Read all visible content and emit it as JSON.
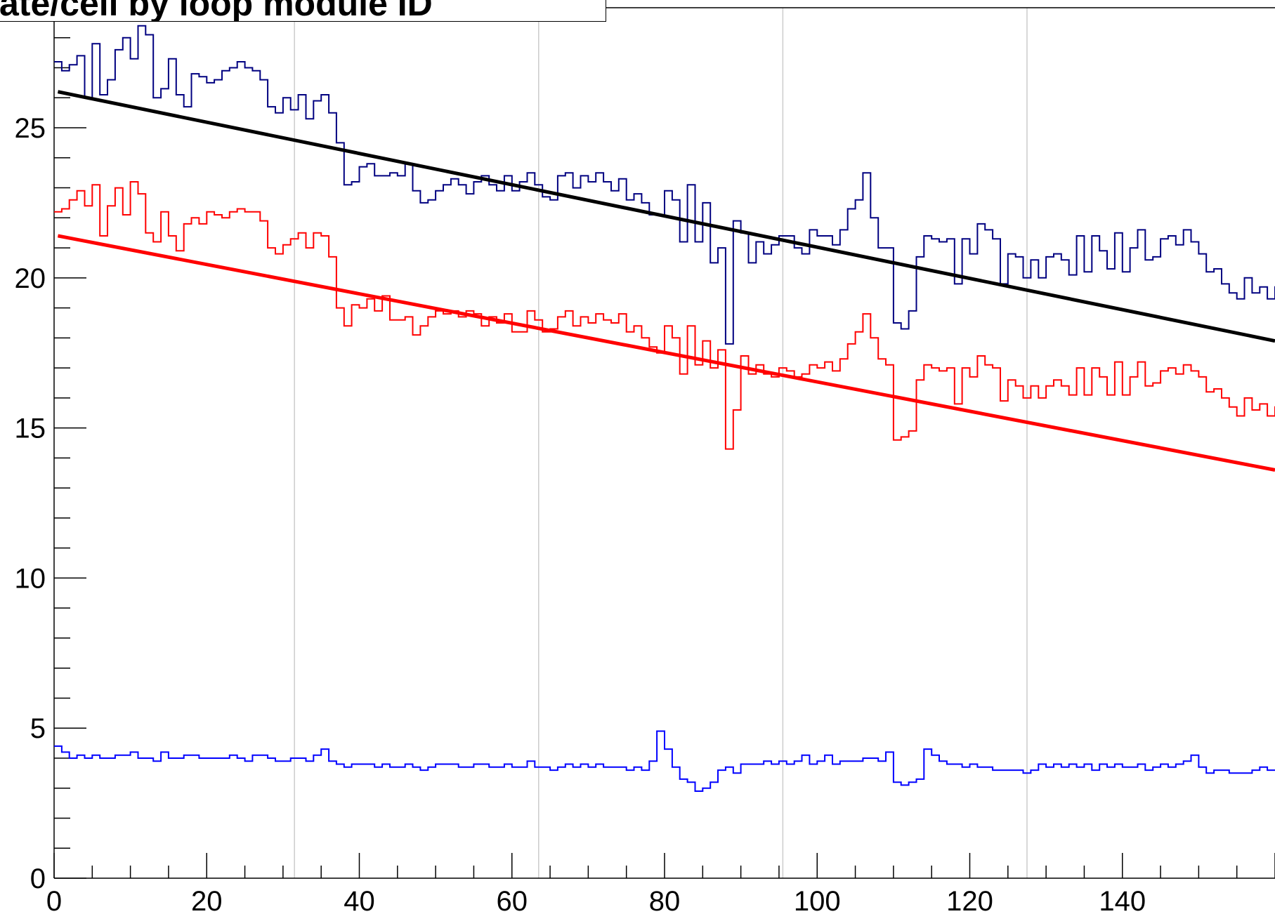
{
  "chart_data": {
    "type": "line",
    "title": "ate/cell by loop module ID",
    "xlabel": "",
    "ylabel": "",
    "xlim": [
      0,
      160
    ],
    "ylim": [
      0,
      29
    ],
    "x_ticks": [
      0,
      20,
      40,
      60,
      80,
      100,
      120,
      140
    ],
    "y_ticks": [
      0,
      5,
      10,
      15,
      20,
      25
    ],
    "x_tick_labels": [
      "0",
      "20",
      "40",
      "60",
      "80",
      "100",
      "120",
      "140"
    ],
    "y_tick_labels": [
      "0",
      "5",
      "10",
      "15",
      "20",
      "25"
    ],
    "vertical_grid_x": [
      31.5,
      63.5,
      95.5,
      127.5
    ],
    "grid": false,
    "series": [
      {
        "kind": "step",
        "color": "#000080",
        "values": [
          27.2,
          26.9,
          27.1,
          27.4,
          26.0,
          27.8,
          26.1,
          26.6,
          27.6,
          28.0,
          27.3,
          28.4,
          28.1,
          26.0,
          26.3,
          27.3,
          26.1,
          25.7,
          26.8,
          26.7,
          26.5,
          26.6,
          26.9,
          27.0,
          27.2,
          27.0,
          26.9,
          26.6,
          25.7,
          25.5,
          26.0,
          25.6,
          26.1,
          25.3,
          25.9,
          26.1,
          25.5,
          24.5,
          23.1,
          23.2,
          23.7,
          23.8,
          23.4,
          23.4,
          23.5,
          23.4,
          23.8,
          22.9,
          22.5,
          22.6,
          22.9,
          23.1,
          23.3,
          23.1,
          22.8,
          23.2,
          23.4,
          23.1,
          22.9,
          23.4,
          22.9,
          23.2,
          23.5,
          23.1,
          22.7,
          22.6,
          23.4,
          23.5,
          23.0,
          23.4,
          23.2,
          23.5,
          23.2,
          22.9,
          23.3,
          22.6,
          22.8,
          22.5,
          22.1,
          22.1,
          22.9,
          22.6,
          21.2,
          23.1,
          21.2,
          22.5,
          20.5,
          21.0,
          17.8,
          21.9,
          21.5,
          20.5,
          21.2,
          20.8,
          21.1,
          21.4,
          21.4,
          21.0,
          20.8,
          21.6,
          21.4,
          21.4,
          21.1,
          21.6,
          22.3,
          22.6,
          23.5,
          22.0,
          21.0,
          21.0,
          18.5,
          18.3,
          18.9,
          20.7,
          21.4,
          21.3,
          21.2,
          21.3,
          19.8,
          21.3,
          20.8,
          21.8,
          21.6,
          21.3,
          19.8,
          20.8,
          20.7,
          20.0,
          20.6,
          20.0,
          20.7,
          20.8,
          20.6,
          20.1,
          21.4,
          20.2,
          21.4,
          20.9,
          20.3,
          21.5,
          20.2,
          21.0,
          21.6,
          20.6,
          20.7,
          21.3,
          21.4,
          21.1,
          21.6,
          21.2,
          20.8,
          20.2,
          20.3,
          19.8,
          19.5,
          19.3,
          20.0,
          19.5,
          19.7,
          19.3,
          19.7,
          20.4,
          19.9,
          19.0,
          19.7,
          20.2,
          19.9,
          19.4,
          19.8,
          19.5,
          19.2,
          18.9,
          19.3,
          19.5,
          19.1,
          19.5,
          19.3,
          19.5,
          19.6
        ]
      },
      {
        "kind": "step",
        "color": "#ff0000",
        "values": [
          22.2,
          22.3,
          22.6,
          22.9,
          22.4,
          23.1,
          21.4,
          22.4,
          23.0,
          22.1,
          23.2,
          22.8,
          21.5,
          21.2,
          22.2,
          21.4,
          20.9,
          21.8,
          22.0,
          21.8,
          22.2,
          22.1,
          22.0,
          22.2,
          22.3,
          22.2,
          22.2,
          21.9,
          21.0,
          20.8,
          21.1,
          21.3,
          21.5,
          21.0,
          21.5,
          21.4,
          20.7,
          19.0,
          18.4,
          19.1,
          19.0,
          19.3,
          18.9,
          19.4,
          18.6,
          18.6,
          18.7,
          18.1,
          18.4,
          18.7,
          18.9,
          18.8,
          18.9,
          18.7,
          18.9,
          18.8,
          18.4,
          18.7,
          18.5,
          18.8,
          18.2,
          18.2,
          18.9,
          18.6,
          18.2,
          18.3,
          18.7,
          18.9,
          18.4,
          18.7,
          18.5,
          18.8,
          18.6,
          18.5,
          18.8,
          18.2,
          18.4,
          18.0,
          17.7,
          17.5,
          18.4,
          18.0,
          16.8,
          18.4,
          17.1,
          17.9,
          17.0,
          17.6,
          14.3,
          15.6,
          17.4,
          16.8,
          17.1,
          16.8,
          16.7,
          17.0,
          16.9,
          16.7,
          16.8,
          17.1,
          17.0,
          17.2,
          16.9,
          17.3,
          17.8,
          18.2,
          18.8,
          18.0,
          17.3,
          17.1,
          14.6,
          14.7,
          14.9,
          16.6,
          17.1,
          17.0,
          16.9,
          17.0,
          15.8,
          17.0,
          16.7,
          17.4,
          17.1,
          17.0,
          15.9,
          16.6,
          16.4,
          16.0,
          16.4,
          16.0,
          16.4,
          16.6,
          16.4,
          16.1,
          17.0,
          16.1,
          17.0,
          16.7,
          16.1,
          17.2,
          16.1,
          16.7,
          17.2,
          16.4,
          16.5,
          16.9,
          17.0,
          16.8,
          17.1,
          16.9,
          16.7,
          16.2,
          16.3,
          16.0,
          15.7,
          15.4,
          16.0,
          15.6,
          15.8,
          15.4,
          15.7,
          16.3,
          15.9,
          15.2,
          15.7,
          16.1,
          15.9,
          15.6,
          15.8,
          15.6,
          15.3,
          15.0,
          15.4,
          15.6,
          15.2,
          15.6,
          15.4,
          15.6,
          15.8
        ]
      },
      {
        "kind": "step",
        "color": "#0000ff",
        "values": [
          4.4,
          4.2,
          4.0,
          4.1,
          4.0,
          4.1,
          4.0,
          4.0,
          4.1,
          4.1,
          4.2,
          4.0,
          4.0,
          3.9,
          4.2,
          4.0,
          4.0,
          4.1,
          4.1,
          4.0,
          4.0,
          4.0,
          4.0,
          4.1,
          4.0,
          3.9,
          4.1,
          4.1,
          4.0,
          3.9,
          3.9,
          4.0,
          4.0,
          3.9,
          4.1,
          4.3,
          3.9,
          3.8,
          3.7,
          3.8,
          3.8,
          3.8,
          3.7,
          3.8,
          3.7,
          3.7,
          3.8,
          3.7,
          3.6,
          3.7,
          3.8,
          3.8,
          3.8,
          3.7,
          3.7,
          3.8,
          3.8,
          3.7,
          3.7,
          3.8,
          3.7,
          3.7,
          3.9,
          3.7,
          3.7,
          3.6,
          3.7,
          3.8,
          3.7,
          3.8,
          3.7,
          3.8,
          3.7,
          3.7,
          3.7,
          3.6,
          3.7,
          3.6,
          3.9,
          4.9,
          4.3,
          3.7,
          3.3,
          3.2,
          2.9,
          3.0,
          3.2,
          3.6,
          3.7,
          3.5,
          3.8,
          3.8,
          3.8,
          3.9,
          3.8,
          3.9,
          3.8,
          3.9,
          4.1,
          3.8,
          3.9,
          4.1,
          3.8,
          3.9,
          3.9,
          3.9,
          4.0,
          4.0,
          3.9,
          4.2,
          3.2,
          3.1,
          3.2,
          3.3,
          4.3,
          4.1,
          3.9,
          3.8,
          3.8,
          3.7,
          3.8,
          3.7,
          3.7,
          3.6,
          3.6,
          3.6,
          3.6,
          3.5,
          3.6,
          3.8,
          3.7,
          3.8,
          3.7,
          3.8,
          3.7,
          3.8,
          3.6,
          3.8,
          3.7,
          3.8,
          3.7,
          3.7,
          3.8,
          3.6,
          3.7,
          3.8,
          3.7,
          3.8,
          3.9,
          4.1,
          3.7,
          3.5,
          3.6,
          3.6,
          3.5,
          3.5,
          3.5,
          3.6,
          3.7,
          3.6,
          3.6,
          3.5,
          3.6,
          3.5,
          3.6,
          3.7,
          3.7,
          3.7,
          3.8,
          3.7,
          3.8,
          3.6,
          3.7,
          3.8,
          3.7,
          3.7,
          3.8,
          3.8,
          3.7
        ]
      },
      {
        "kind": "fit-line",
        "color": "#000000",
        "x": [
          0.5,
          160
        ],
        "y": [
          26.2,
          17.9
        ]
      },
      {
        "kind": "fit-line",
        "color": "#ff0000",
        "x": [
          0.5,
          160
        ],
        "y": [
          21.4,
          13.6
        ]
      }
    ]
  }
}
